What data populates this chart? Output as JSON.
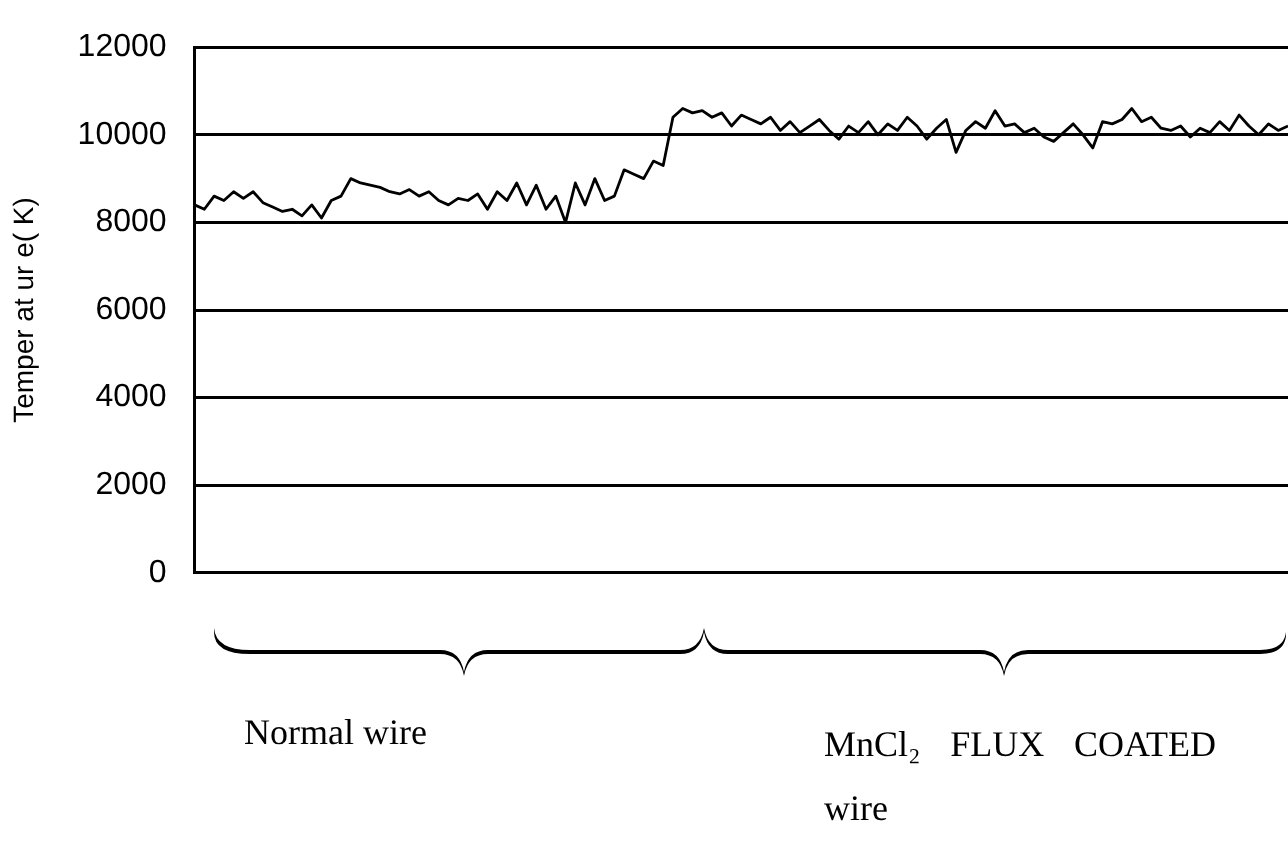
{
  "chart_data": {
    "type": "line",
    "ylabel": "Temper at ur e( K)",
    "categories": [
      null,
      null,
      null,
      null,
      null,
      null,
      null,
      null,
      null,
      null,
      null,
      null,
      null,
      null,
      null,
      null,
      null,
      null,
      null,
      null,
      null,
      null,
      null,
      null,
      null,
      null,
      null,
      null,
      null,
      null,
      null,
      null,
      null,
      null,
      null,
      null,
      null,
      null,
      null,
      null,
      null,
      null,
      null,
      null,
      null,
      null,
      null,
      null,
      null,
      null,
      null,
      null,
      null,
      null,
      null,
      null,
      null,
      null,
      null,
      null,
      null,
      null,
      null,
      null,
      null,
      null,
      null,
      null,
      null,
      null,
      null,
      null,
      null,
      null,
      null,
      null,
      null,
      null,
      null,
      null,
      null,
      null,
      null,
      null,
      null,
      null,
      null,
      null,
      null,
      null,
      null,
      null,
      null,
      null,
      null,
      null,
      null,
      null,
      null,
      null,
      null,
      null,
      null,
      null,
      null,
      null,
      null,
      null,
      null,
      null,
      null,
      null,
      null
    ],
    "series": [
      {
        "color": "#000000",
        "values": [
          8400,
          8300,
          8600,
          8500,
          8700,
          8550,
          8700,
          8450,
          8350,
          8250,
          8300,
          8150,
          8400,
          8100,
          8500,
          8600,
          9000,
          8900,
          8850,
          8800,
          8700,
          8650,
          8750,
          8600,
          8700,
          8500,
          8400,
          8550,
          8500,
          8650,
          8300,
          8700,
          8500,
          8900,
          8400,
          8850,
          8300,
          8600,
          8000,
          8900,
          8400,
          9000,
          8500,
          8600,
          9200,
          9100,
          9000,
          9400,
          9300,
          10400,
          10600,
          10500,
          10550,
          10400,
          10500,
          10200,
          10450,
          10350,
          10250,
          10400,
          10100,
          10300,
          10050,
          10200,
          10350,
          10100,
          9900,
          10200,
          10050,
          10300,
          10000,
          10250,
          10100,
          10400,
          10200,
          9900,
          10150,
          10350,
          9600,
          10100,
          10300,
          10150,
          10550,
          10200,
          10250,
          10050,
          10150,
          9950,
          9850,
          10050,
          10250,
          10000,
          9700,
          10300,
          10250,
          10350,
          10600,
          10300,
          10400,
          10150,
          10100,
          10200,
          9950,
          10150,
          10050,
          10300,
          10100,
          10450,
          10200,
          10000,
          10250,
          10100,
          10200
        ]
      }
    ],
    "ylim": [
      0,
      12000
    ],
    "yticks": [
      0,
      2000,
      4000,
      6000,
      8000,
      10000,
      12000
    ],
    "grid": "y",
    "marker": "none",
    "line_style": "solid",
    "annotations": [
      "Normal wire",
      "MnCl₂ FLUX COATED wire"
    ]
  }
}
